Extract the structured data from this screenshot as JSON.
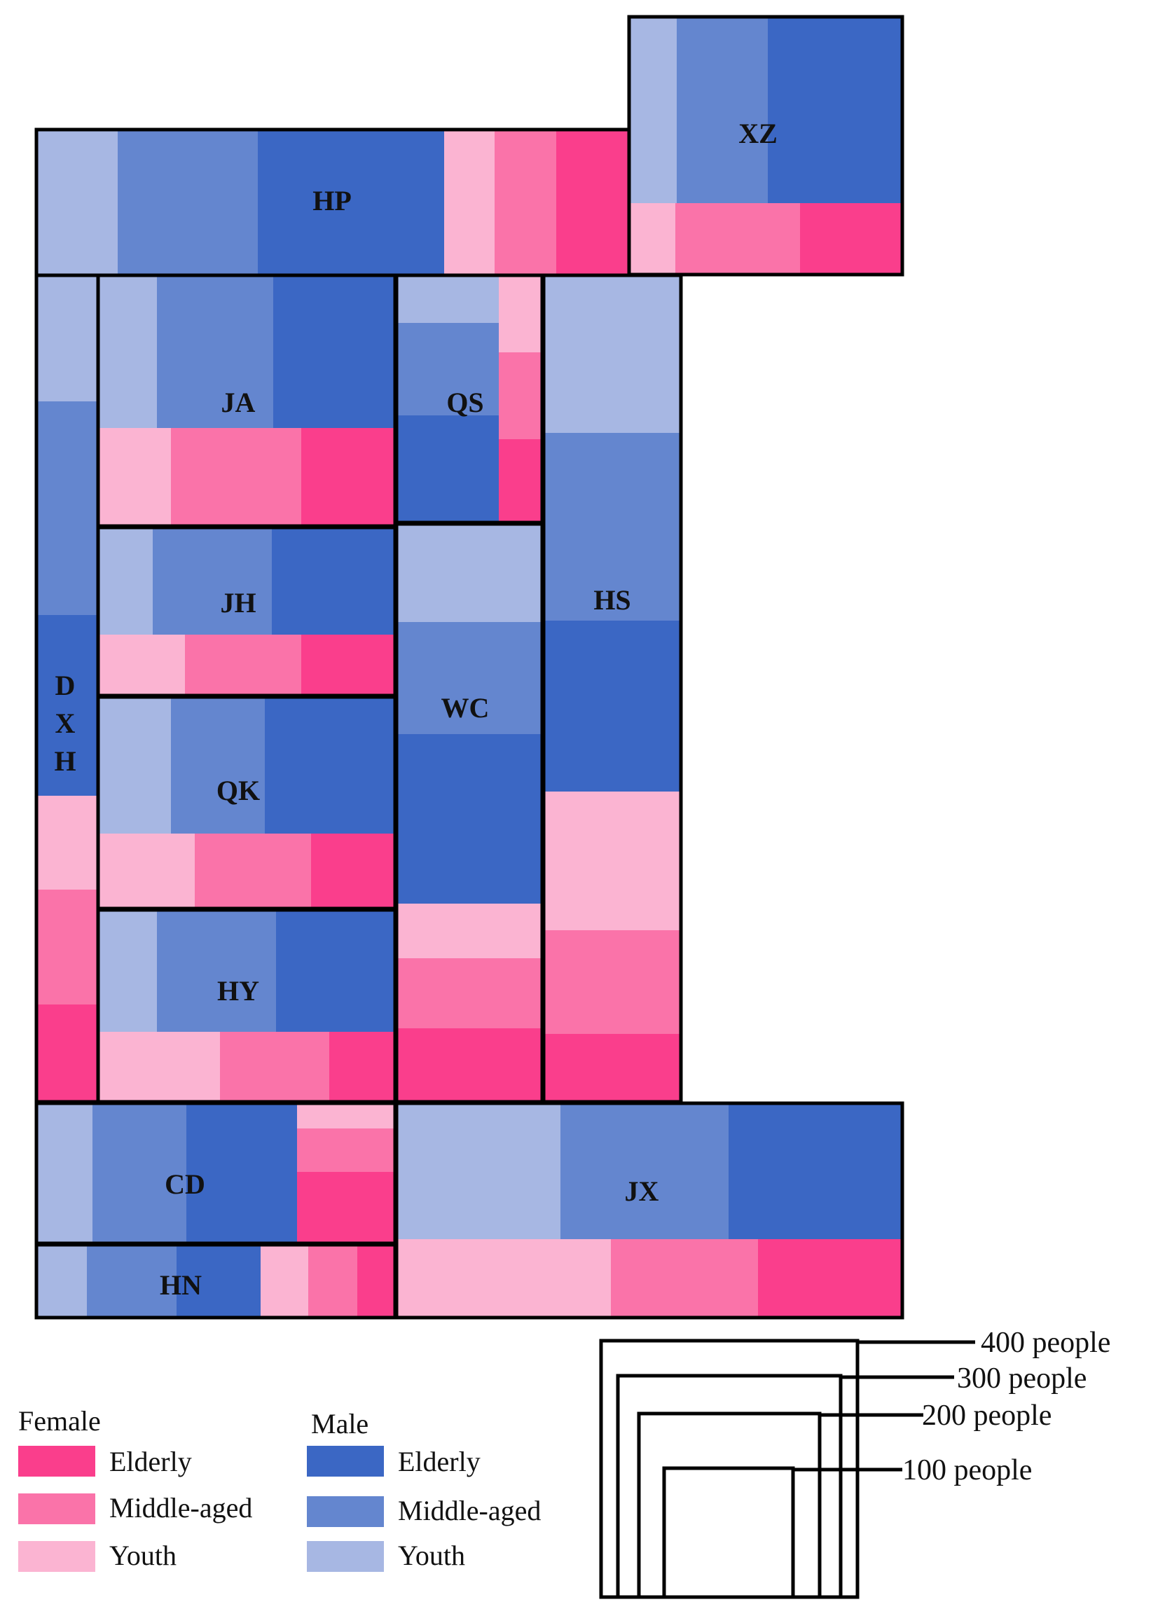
{
  "chart_data": {
    "type": "population-pyramid-map (spatial treemap)",
    "colors": {
      "female_elderly": "#fa3e8c",
      "female_middle": "#fa73a9",
      "female_youth": "#fbb4d2",
      "male_elderly": "#3b67c4",
      "male_middle": "#6486cf",
      "male_youth": "#a7b7e3",
      "border": "#000000"
    },
    "regions": [
      {
        "name": "HP",
        "label": "HP"
      },
      {
        "name": "XZ",
        "label": "XZ"
      },
      {
        "name": "DXH",
        "label_lines": [
          "D",
          "X",
          "H"
        ]
      },
      {
        "name": "JA",
        "label": "JA"
      },
      {
        "name": "QS",
        "label": "QS"
      },
      {
        "name": "HS",
        "label": "HS"
      },
      {
        "name": "JH",
        "label": "JH"
      },
      {
        "name": "WC",
        "label": "WC"
      },
      {
        "name": "QK",
        "label": "QK"
      },
      {
        "name": "HY",
        "label": "HY"
      },
      {
        "name": "CD",
        "label": "CD"
      },
      {
        "name": "JX",
        "label": "JX"
      },
      {
        "name": "HN",
        "label": "HN"
      }
    ],
    "legend": {
      "female_title": "Female",
      "male_title": "Male",
      "categories": [
        "Elderly",
        "Middle-aged",
        "Youth"
      ]
    },
    "size_scale": {
      "labels": [
        "400 people",
        "300 people",
        "200 people",
        "100 people"
      ],
      "values": [
        400,
        300,
        200,
        100
      ]
    }
  }
}
